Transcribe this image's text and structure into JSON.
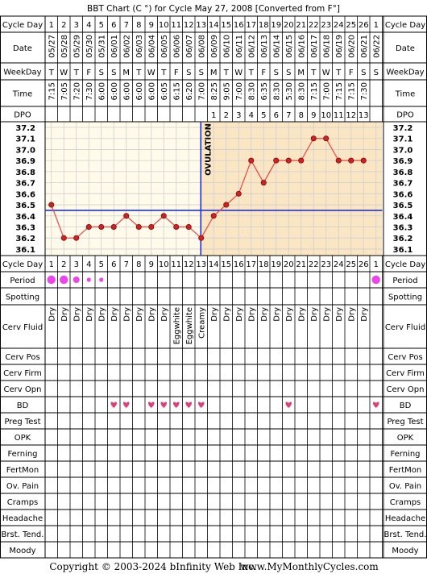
{
  "title": "BBT Chart (C °) for Cycle May 27, 2008  [Converted from F°]",
  "footer": {
    "copyright": "Copyright © 2003-2024 bInfinity Web Inc.",
    "site": "www.MyMonthlyCycles.com"
  },
  "row_labels": {
    "cycle_day": "Cycle Day",
    "date": "Date",
    "weekday": "WeekDay",
    "time": "Time",
    "dpo": "DPO",
    "period": "Period",
    "spotting": "Spotting",
    "cerv_fluid": "Cerv Fluid",
    "cerv_pos": "Cerv Pos",
    "cerv_firm": "Cerv Firm",
    "cerv_opn": "Cerv Opn",
    "bd": "BD",
    "preg_test": "Preg Test",
    "opk": "OPK",
    "ferning": "Ferning",
    "fertmon": "FertMon",
    "ov_pain": "Ov. Pain",
    "cramps": "Cramps",
    "headache": "Headache",
    "brst_tend": "Brst. Tend.",
    "moody": "Moody"
  },
  "ovulation_label": "OVULATION",
  "colors": {
    "chart_bg": "#fffaea",
    "luteal_bg": "#fbe6c4",
    "grid": "#cfcfcf",
    "blue_line": "#2233cc",
    "temp_line": "#ee4444",
    "temp_dot": "#cc2222",
    "period_dot": "#ee44ee",
    "heart": "#e0407a"
  },
  "days": [
    1,
    2,
    3,
    4,
    5,
    6,
    7,
    8,
    9,
    10,
    11,
    12,
    13,
    14,
    15,
    16,
    17,
    18,
    19,
    20,
    21,
    22,
    23,
    24,
    25,
    26,
    1
  ],
  "dates": [
    "05/27",
    "05/28",
    "05/29",
    "05/30",
    "05/31",
    "06/01",
    "06/02",
    "06/03",
    "06/04",
    "06/05",
    "06/06",
    "06/07",
    "06/08",
    "06/09",
    "06/10",
    "06/11",
    "06/12",
    "06/13",
    "06/14",
    "06/15",
    "06/16",
    "06/17",
    "06/18",
    "06/19",
    "06/20",
    "06/21",
    "06/22"
  ],
  "weekdays": [
    "T",
    "W",
    "T",
    "F",
    "S",
    "S",
    "M",
    "T",
    "W",
    "T",
    "F",
    "S",
    "S",
    "M",
    "T",
    "W",
    "T",
    "F",
    "S",
    "S",
    "M",
    "T",
    "W",
    "T",
    "F",
    "S",
    "S"
  ],
  "times": [
    "7:15",
    "7:05",
    "7:20",
    "7:30",
    "6:00",
    "6:00",
    "6:00",
    "6:00",
    "6:00",
    "6:05",
    "6:15",
    "6:20",
    "7:00",
    "8:25",
    "9:05",
    "7:00",
    "8:30",
    "6:35",
    "8:30",
    "5:30",
    "8:30",
    "7:15",
    "7:00",
    "7:15",
    "7:15",
    "7:30",
    ""
  ],
  "dpo": [
    "",
    "",
    "",
    "",
    "",
    "",
    "",
    "",
    "",
    "",
    "",
    "",
    "",
    "1",
    "2",
    "3",
    "4",
    "5",
    "6",
    "7",
    "8",
    "9",
    "10",
    "11",
    "12",
    "13",
    ""
  ],
  "period": [
    "heavy",
    "heavy",
    "medium",
    "light",
    "light",
    "",
    "",
    "",
    "",
    "",
    "",
    "",
    "",
    "",
    "",
    "",
    "",
    "",
    "",
    "",
    "",
    "",
    "",
    "",
    "",
    "",
    "heavy"
  ],
  "cerv_fluid": [
    "Dry",
    "Dry",
    "Dry",
    "Dry",
    "Dry",
    "Dry",
    "Dry",
    "Dry",
    "Dry",
    "Dry",
    "Eggwhite",
    "Eggwhite",
    "Creamy",
    "Dry",
    "Dry",
    "Dry",
    "Dry",
    "Dry",
    "Dry",
    "Dry",
    "Dry",
    "Dry",
    "Dry",
    "Dry",
    "Dry",
    "Dry",
    ""
  ],
  "bd": [
    false,
    false,
    false,
    false,
    false,
    true,
    true,
    false,
    true,
    true,
    true,
    true,
    true,
    false,
    false,
    false,
    false,
    false,
    false,
    true,
    false,
    false,
    false,
    false,
    false,
    false,
    true
  ],
  "chart_data": {
    "type": "line",
    "title": "BBT Chart (C °) for Cycle May 27, 2008  [Converted from F°]",
    "xlabel": "Cycle Day",
    "ylabel": "",
    "ylim": [
      36.1,
      37.2
    ],
    "y_ticks": [
      "37.2",
      "37.1",
      "37.0",
      "36.9",
      "36.8",
      "36.7",
      "36.6",
      "36.5",
      "36.4",
      "36.3",
      "36.2",
      "36.1"
    ],
    "x": [
      1,
      2,
      3,
      4,
      5,
      6,
      7,
      8,
      9,
      10,
      11,
      12,
      13,
      14,
      15,
      16,
      17,
      18,
      19,
      20,
      21,
      22,
      23,
      24,
      25,
      26
    ],
    "values": [
      36.5,
      36.2,
      36.2,
      36.3,
      36.3,
      36.3,
      36.4,
      36.3,
      36.3,
      36.4,
      36.3,
      36.3,
      36.2,
      36.4,
      36.5,
      36.6,
      36.9,
      36.7,
      36.9,
      36.9,
      36.9,
      37.1,
      37.1,
      36.9,
      36.9,
      36.9
    ],
    "coverline": 36.45,
    "ovulation_day": 13,
    "grid": true
  }
}
